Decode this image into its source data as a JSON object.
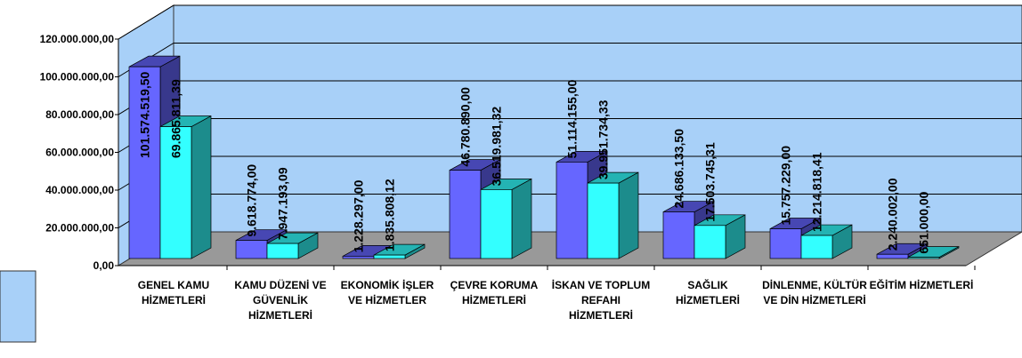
{
  "chart_data": {
    "type": "bar3d",
    "categories": [
      "GENEL KAMU HİZMETLERİ",
      "KAMU DÜZENİ VE GÜVENLİK HİZMETLERİ",
      "EKONOMİK İŞLER VE HİZMETLER",
      "ÇEVRE KORUMA HİZMETLERİ",
      "İSKAN VE TOPLUM REFAHI HİZMETLERİ",
      "SAĞLIK HİZMETLERİ",
      "DİNLENME, KÜLTÜR VE DİN HİZMETLERİ",
      "EĞİTİM HİZMETLERİ"
    ],
    "series": [
      {
        "color": "#6666ff",
        "values": [
          101574519.5,
          9618774.0,
          1228297.0,
          46780890.0,
          51114155.0,
          24686133.5,
          15757229.0,
          2240002.0
        ],
        "value_labels": [
          "101.574.519,50",
          "9.618.774,00",
          "1.228.297,00",
          "46.780.890,00",
          "51.114.155,00",
          "24.686.133,50",
          "15.757.229,00",
          "2.240.002,00"
        ]
      },
      {
        "color": "#33ffff",
        "values": [
          69865811.39,
          7947193.09,
          1835808.12,
          36519981.32,
          39951734.33,
          17503745.31,
          12214818.41,
          651000.0
        ],
        "value_labels": [
          "69.865.811,39",
          "7.947.193,09",
          "1.835.808,12",
          "36.519.981,32",
          "39.951.734,33",
          "17.503.745,31",
          "12.214.818,41",
          "651.000,00"
        ]
      }
    ],
    "ylim": [
      0,
      120000000
    ],
    "yticks": [
      {
        "value": 0,
        "label": "0,00"
      },
      {
        "value": 20000000,
        "label": "20.000.000,00"
      },
      {
        "value": 40000000,
        "label": "40.000.000,00"
      },
      {
        "value": 60000000,
        "label": "60.000.000,00"
      },
      {
        "value": 80000000,
        "label": "80.000.000,00"
      },
      {
        "value": 100000000,
        "label": "100.000.000,00"
      },
      {
        "value": 120000000,
        "label": "120.000.000,00"
      }
    ],
    "grid": true
  }
}
